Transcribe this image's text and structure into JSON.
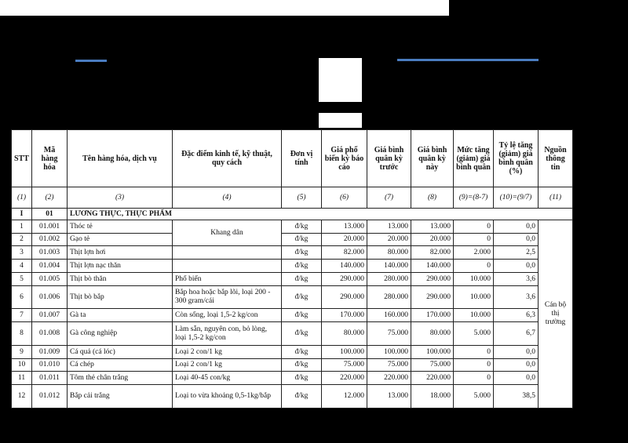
{
  "headers": [
    "STT",
    "Mã hàng hóa",
    "Tên hàng hóa, dịch vụ",
    "Đặc điểm kinh tế, kỹ thuật, quy cách",
    "Đơn vị tính",
    "Giá phổ biến kỳ báo cáo",
    "Giá bình quân kỳ trước",
    "Giá bình quân kỳ này",
    "Mức tăng (giảm) giá bình quân",
    "Tỷ lệ tăng (giảm) giá bình quân (%)",
    "Nguồn thông tin"
  ],
  "column_index": [
    "(1)",
    "(2)",
    "(3)",
    "(4)",
    "(5)",
    "(6)",
    "(7)",
    "(8)",
    "(9)=(8-7)",
    "(10)=(9/7)",
    "(11)"
  ],
  "section": {
    "stt": "I",
    "code": "01",
    "name": "LƯƠNG THỰC, THỰC PHẨM"
  },
  "merged": {
    "khang_dan": "Khang dân",
    "source": "Cán bộ thị trường"
  },
  "rows": [
    {
      "stt": "1",
      "code": "01.001",
      "name": "Thóc tẻ",
      "spec": "",
      "unit": "đ/kg",
      "p6": "13.000",
      "p7": "13.000",
      "p8": "13.000",
      "p9": "0",
      "p10": "0,0"
    },
    {
      "stt": "2",
      "code": "01.002",
      "name": "Gạo tẻ",
      "spec": "",
      "unit": "đ/kg",
      "p6": "20.000",
      "p7": "20.000",
      "p8": "20.000",
      "p9": "0",
      "p10": "0,0"
    },
    {
      "stt": "3",
      "code": "01.003",
      "name": "Thịt lợn hơi",
      "spec": "",
      "unit": "đ/kg",
      "p6": "82.000",
      "p7": "80.000",
      "p8": "82.000",
      "p9": "2.000",
      "p10": "2,5"
    },
    {
      "stt": "4",
      "code": "01.004",
      "name": "Thịt lợn nạc thăn",
      "spec": "",
      "unit": "đ/kg",
      "p6": "140.000",
      "p7": "140.000",
      "p8": "140.000",
      "p9": "0",
      "p10": "0,0"
    },
    {
      "stt": "5",
      "code": "01.005",
      "name": "Thịt bò thăn",
      "spec": "Phổ biến",
      "unit": "đ/kg",
      "p6": "290.000",
      "p7": "280.000",
      "p8": "290.000",
      "p9": "10.000",
      "p10": "3,6"
    },
    {
      "stt": "6",
      "code": "01.006",
      "name": "Thịt bò bắp",
      "spec": "Bắp hoa hoặc bắp lõi, loại 200 - 300 gram/cái",
      "unit": "đ/kg",
      "p6": "290.000",
      "p7": "280.000",
      "p8": "290.000",
      "p9": "10.000",
      "p10": "3,6"
    },
    {
      "stt": "7",
      "code": "01.007",
      "name": "Gà ta",
      "spec": "Còn sống, loại 1,5-2 kg/con",
      "unit": "đ/kg",
      "p6": "170.000",
      "p7": "160.000",
      "p8": "170.000",
      "p9": "10.000",
      "p10": "6,3"
    },
    {
      "stt": "8",
      "code": "01.008",
      "name": "Gà công nghiệp",
      "spec": "Làm sẵn, nguyên con, bỏ lòng, loại 1,5-2 kg/con",
      "unit": "đ/kg",
      "p6": "80.000",
      "p7": "75.000",
      "p8": "80.000",
      "p9": "5.000",
      "p10": "6,7"
    },
    {
      "stt": "9",
      "code": "01.009",
      "name": "Cá quả (cá lóc)",
      "spec": "Loại 2 con/1 kg",
      "unit": "đ/kg",
      "p6": "100.000",
      "p7": "100.000",
      "p8": "100.000",
      "p9": "0",
      "p10": "0,0"
    },
    {
      "stt": "10",
      "code": "01.010",
      "name": "Cá chép",
      "spec": "Loại 2 con/1 kg",
      "unit": "đ/kg",
      "p6": "75.000",
      "p7": "75.000",
      "p8": "75.000",
      "p9": "0",
      "p10": "0,0"
    },
    {
      "stt": "11",
      "code": "01.011",
      "name": "Tôm thẻ chân trắng",
      "spec": "Loại 40-45 con/kg",
      "unit": "đ/kg",
      "p6": "220.000",
      "p7": "220.000",
      "p8": "220.000",
      "p9": "0",
      "p10": "0,0"
    },
    {
      "stt": "12",
      "code": "01.012",
      "name": "Bắp cải trắng",
      "spec": "Loại to vừa khoảng 0,5-1kg/bắp",
      "unit": "đ/kg",
      "p6": "12.000",
      "p7": "13.000",
      "p8": "18.000",
      "p9": "5.000",
      "p10": "38,5"
    }
  ]
}
